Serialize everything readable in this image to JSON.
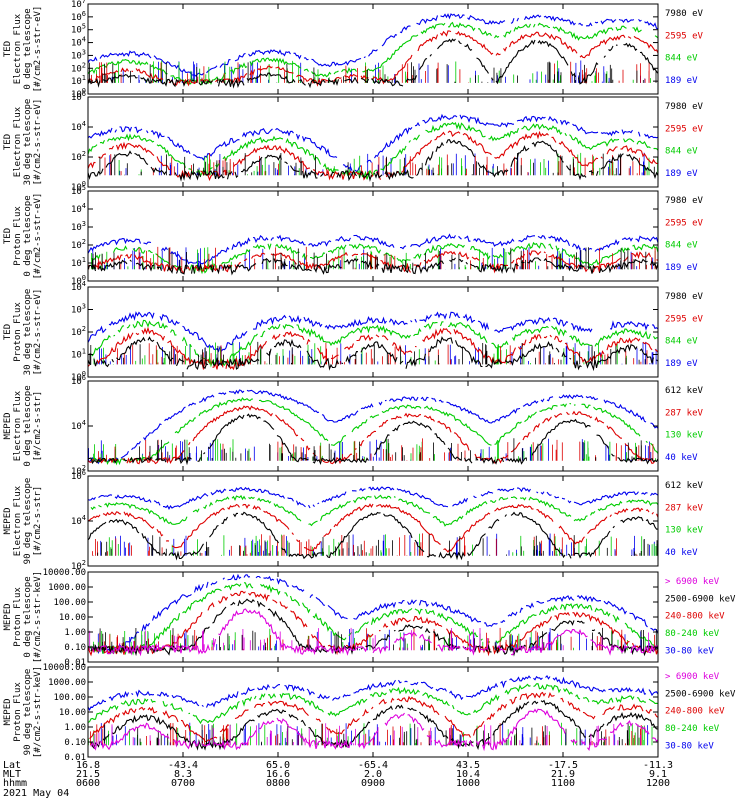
{
  "chart_data": [
    {
      "type": "line",
      "ylabel_lines": [
        "TED",
        "Electron Flux",
        "0 deg telescope",
        "[#/cm2-s-str-eV]"
      ],
      "yscale": "log",
      "ylim": [
        1,
        10000000
      ],
      "ytick_labels": [
        "10^0",
        "10^1",
        "10^2",
        "10^3",
        "10^4",
        "10^5",
        "10^6",
        "10^7"
      ],
      "series": [
        {
          "name": "7980 eV",
          "color": "#000000"
        },
        {
          "name": "2595 eV",
          "color": "#dd0000"
        },
        {
          "name": "844 eV",
          "color": "#00cc00"
        },
        {
          "name": "189 eV",
          "color": "#0000ee"
        }
      ],
      "peaks": [
        {
          "x": 0.07,
          "v": 1500
        },
        {
          "x": 0.32,
          "v": 2000
        },
        {
          "x": 0.47,
          "v": 300
        },
        {
          "x": 0.64,
          "v": 1200000
        },
        {
          "x": 0.79,
          "v": 1000000
        },
        {
          "x": 0.94,
          "v": 600000
        }
      ]
    },
    {
      "type": "line",
      "ylabel_lines": [
        "TED",
        "Electron Flux",
        "30 deg telescope",
        "[#/cm2-s-str-eV]"
      ],
      "yscale": "log",
      "ylim": [
        1,
        1000000
      ],
      "ytick_labels": [
        "10^0",
        "10^2",
        "10^4",
        "10^6"
      ],
      "series": [
        {
          "name": "7980 eV",
          "color": "#000000"
        },
        {
          "name": "2595 eV",
          "color": "#dd0000"
        },
        {
          "name": "844 eV",
          "color": "#00cc00"
        },
        {
          "name": "189 eV",
          "color": "#0000ee"
        }
      ],
      "peaks": [
        {
          "x": 0.07,
          "v": 8000
        },
        {
          "x": 0.32,
          "v": 6000
        },
        {
          "x": 0.64,
          "v": 50000
        },
        {
          "x": 0.79,
          "v": 40000
        },
        {
          "x": 0.94,
          "v": 5000
        }
      ]
    },
    {
      "type": "line",
      "ylabel_lines": [
        "TED",
        "Proton Flux",
        "0 deg telescope",
        "[#/cm2-s-str-eV]"
      ],
      "yscale": "log",
      "ylim": [
        1,
        1000000
      ],
      "ytick_labels": [
        "10^0",
        "10^1",
        "10^2",
        "10^3",
        "10^4",
        "10^5"
      ],
      "series": [
        {
          "name": "7980 eV",
          "color": "#000000"
        },
        {
          "name": "2595 eV",
          "color": "#dd0000"
        },
        {
          "name": "844 eV",
          "color": "#00cc00"
        },
        {
          "name": "189 eV",
          "color": "#0000ee"
        }
      ],
      "peaks": [
        {
          "x": 0.07,
          "v": 500
        },
        {
          "x": 0.32,
          "v": 800
        },
        {
          "x": 0.47,
          "v": 800
        },
        {
          "x": 0.64,
          "v": 900
        },
        {
          "x": 0.79,
          "v": 900
        },
        {
          "x": 0.97,
          "v": 700
        }
      ]
    },
    {
      "type": "line",
      "ylabel_lines": [
        "TED",
        "Proton Flux",
        "30 deg telescope",
        "[#/cm2-s-str-eV]"
      ],
      "yscale": "log",
      "ylim": [
        1,
        100000
      ],
      "ytick_labels": [
        "10^0",
        "10^1",
        "10^2",
        "10^3",
        "10^4"
      ],
      "series": [
        {
          "name": "7980 eV",
          "color": "#000000"
        },
        {
          "name": "2595 eV",
          "color": "#dd0000"
        },
        {
          "name": "844 eV",
          "color": "#00cc00"
        },
        {
          "name": "189 eV",
          "color": "#0000ee"
        }
      ],
      "peaks": [
        {
          "x": 0.1,
          "v": 3000
        },
        {
          "x": 0.35,
          "v": 2000
        },
        {
          "x": 0.5,
          "v": 1500
        },
        {
          "x": 0.63,
          "v": 3000
        },
        {
          "x": 0.8,
          "v": 1500
        },
        {
          "x": 0.95,
          "v": 1000
        }
      ]
    },
    {
      "type": "line",
      "ylabel_lines": [
        "MEPED",
        "Electron Flux",
        "0 deg telescope",
        "[#/cm2-s-str]"
      ],
      "yscale": "log",
      "ylim": [
        0.01,
        10000000
      ],
      "ytick_labels": [
        "10^2",
        "10^4",
        "10^6"
      ],
      "series": [
        {
          "name": "612 keV",
          "color": "#000000"
        },
        {
          "name": "287 keV",
          "color": "#dd0000"
        },
        {
          "name": "130 keV",
          "color": "#00cc00"
        },
        {
          "name": "40 keV",
          "color": "#0000ee"
        }
      ],
      "peaks": [
        {
          "x": 0.28,
          "v": 1000000
        },
        {
          "x": 0.57,
          "v": 200000
        },
        {
          "x": 0.85,
          "v": 300000
        }
      ]
    },
    {
      "type": "line",
      "ylabel_lines": [
        "MEPED",
        "Electron Flux",
        "90 deg telescope",
        "[#/cm2-s-str]"
      ],
      "yscale": "log",
      "ylim": [
        0.01,
        10000000
      ],
      "ytick_labels": [
        "10^2",
        "10^4",
        "10^6"
      ],
      "series": [
        {
          "name": "612 keV",
          "color": "#000000"
        },
        {
          "name": "287 keV",
          "color": "#dd0000"
        },
        {
          "name": "130 keV",
          "color": "#00cc00"
        },
        {
          "name": "40 keV",
          "color": "#0000ee"
        }
      ],
      "peaks": [
        {
          "x": 0.05,
          "v": 100000
        },
        {
          "x": 0.27,
          "v": 500000
        },
        {
          "x": 0.51,
          "v": 600000
        },
        {
          "x": 0.75,
          "v": 500000
        },
        {
          "x": 0.96,
          "v": 200000
        }
      ]
    },
    {
      "type": "line",
      "ylabel_lines": [
        "MEPED",
        "Proton Flux",
        "0 deg telescope",
        "[#/cm2-s-str-keV]"
      ],
      "yscale": "log",
      "ylim": [
        0.01,
        10000
      ],
      "ytick_labels": [
        "10000.00",
        "1000.00",
        "100.00",
        "10.00",
        "1.00",
        "0.10",
        "0.01"
      ],
      "series": [
        {
          "name": "> 6900 keV",
          "color": "#dd00dd"
        },
        {
          "name": "2500-6900 keV",
          "color": "#000000"
        },
        {
          "name": "240-800 keV",
          "color": "#dd0000"
        },
        {
          "name": "80-240 keV",
          "color": "#00cc00"
        },
        {
          "name": "30-80 keV",
          "color": "#0000ee"
        }
      ],
      "peaks": [
        {
          "x": 0.28,
          "v": 5000
        },
        {
          "x": 0.57,
          "v": 100
        },
        {
          "x": 0.85,
          "v": 200
        }
      ]
    },
    {
      "type": "line",
      "ylabel_lines": [
        "MEPED",
        "Proton Flux",
        "90 deg telescope",
        "[#/cm2-s-str-keV]"
      ],
      "yscale": "log",
      "ylim": [
        0.01,
        10000
      ],
      "ytick_labels": [
        "10000.00",
        "1000.00",
        "100.00",
        "10.00",
        "1.00",
        "0.10",
        "0.01"
      ],
      "series": [
        {
          "name": "> 6900 keV",
          "color": "#dd00dd"
        },
        {
          "name": "2500-6900 keV",
          "color": "#000000"
        },
        {
          "name": "240-800 keV",
          "color": "#dd0000"
        },
        {
          "name": "80-240 keV",
          "color": "#00cc00"
        },
        {
          "name": "30-80 keV",
          "color": "#0000ee"
        }
      ],
      "peaks": [
        {
          "x": 0.1,
          "v": 200
        },
        {
          "x": 0.33,
          "v": 500
        },
        {
          "x": 0.55,
          "v": 1000
        },
        {
          "x": 0.79,
          "v": 2000
        },
        {
          "x": 0.95,
          "v": 300
        }
      ]
    }
  ],
  "x_axis": {
    "row_labels": [
      "Lat",
      "MLT",
      "hhmm"
    ],
    "date": "2021 May 04",
    "columns": [
      {
        "lat": "16.8",
        "mlt": "21.5",
        "hhmm": "0600"
      },
      {
        "lat": "-43.4",
        "mlt": "8.3",
        "hhmm": "0700"
      },
      {
        "lat": "65.0",
        "mlt": "16.6",
        "hhmm": "0800"
      },
      {
        "lat": "-65.4",
        "mlt": "2.0",
        "hhmm": "0900"
      },
      {
        "lat": "43.5",
        "mlt": "10.4",
        "hhmm": "1000"
      },
      {
        "lat": "-17.5",
        "mlt": "21.9",
        "hhmm": "1100"
      },
      {
        "lat": "-11.3",
        "mlt": "9.1",
        "hhmm": "1200"
      }
    ]
  }
}
